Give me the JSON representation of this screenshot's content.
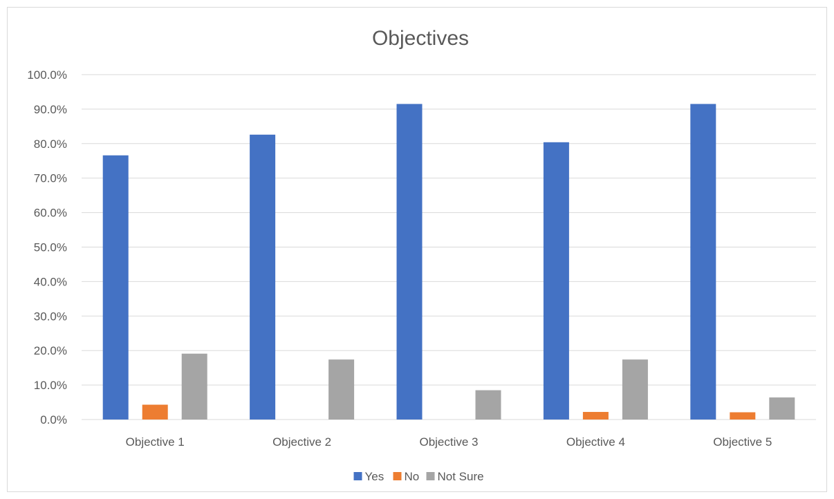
{
  "chart_data": {
    "type": "bar",
    "title": "Objectives",
    "xlabel": "",
    "ylabel": "",
    "categories": [
      "Objective 1",
      "Objective 2",
      "Objective 3",
      "Objective 4",
      "Objective 5"
    ],
    "series": [
      {
        "name": "Yes",
        "color": "#4472c4",
        "values": [
          76.6,
          82.6,
          91.5,
          80.4,
          91.5
        ]
      },
      {
        "name": "No",
        "color": "#ed7d31",
        "values": [
          4.3,
          0.0,
          0.0,
          2.2,
          2.1
        ]
      },
      {
        "name": "Not Sure",
        "color": "#a5a5a5",
        "values": [
          19.1,
          17.4,
          8.5,
          17.4,
          6.4
        ]
      }
    ],
    "ylim": [
      0,
      100
    ],
    "yticks": [
      "0.0%",
      "10.0%",
      "20.0%",
      "30.0%",
      "40.0%",
      "50.0%",
      "60.0%",
      "70.0%",
      "80.0%",
      "90.0%",
      "100.0%"
    ],
    "grid": true,
    "legend_position": "bottom"
  }
}
